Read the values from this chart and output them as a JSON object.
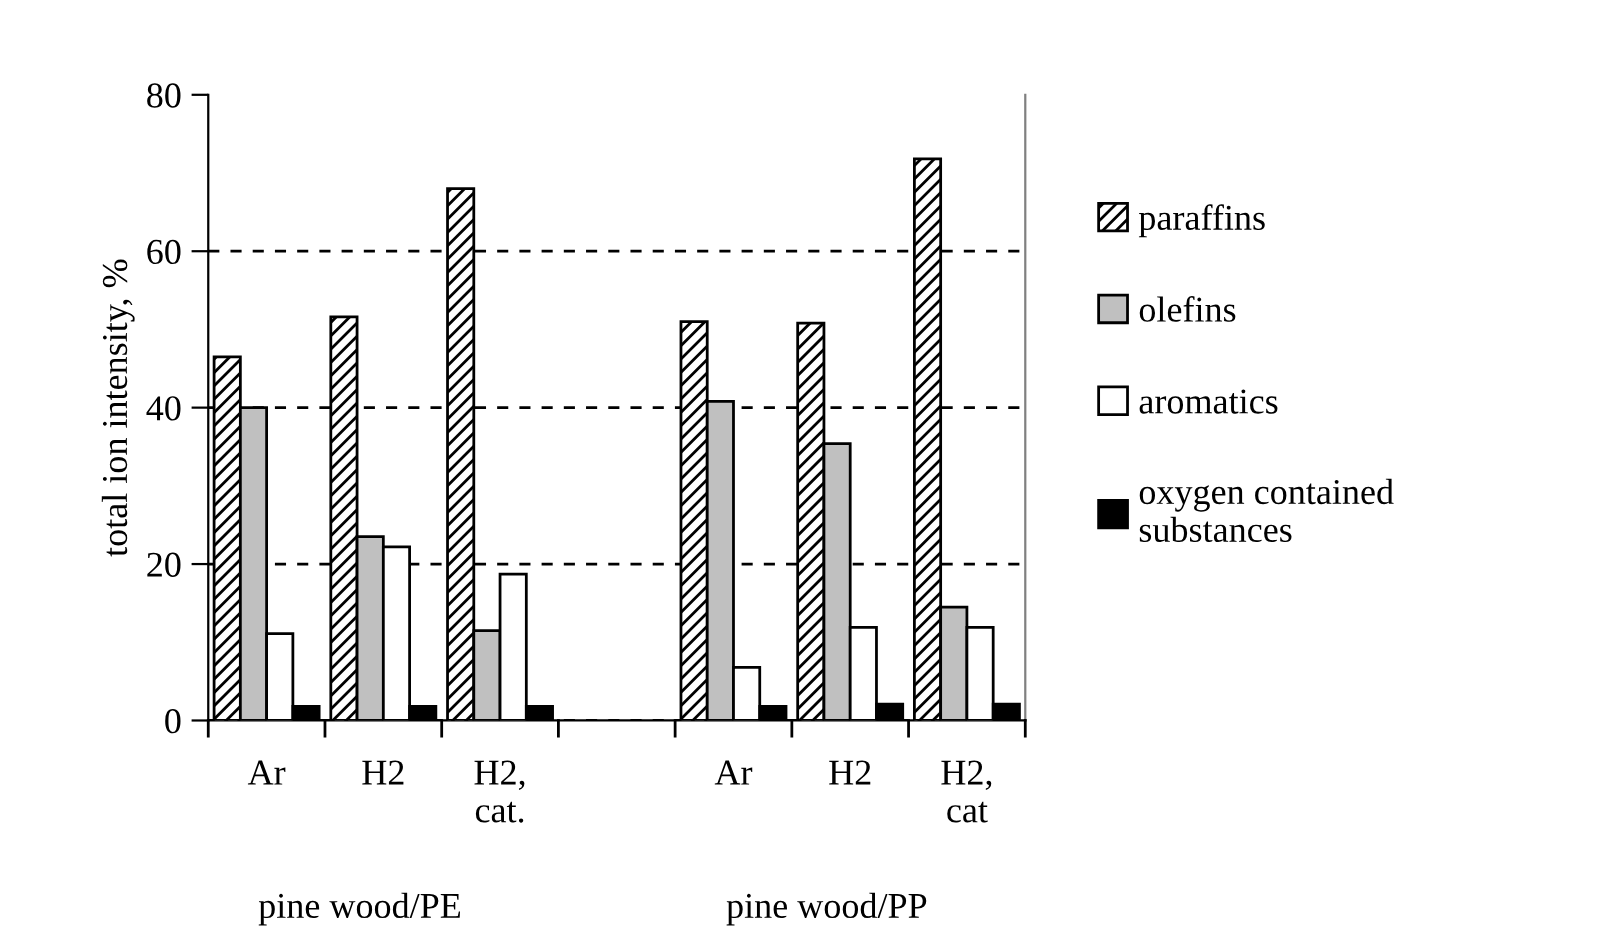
{
  "chart_data": {
    "type": "bar",
    "ylabel": "total ion intensity, %",
    "categories": [
      "Ar",
      "H2",
      "H2,\ncat.",
      null,
      "Ar",
      "H2",
      "H2,\ncat"
    ],
    "series": [
      {
        "name": "paraffins",
        "color": "#000000",
        "values": [
          46.5,
          51.6,
          68,
          null,
          51,
          50.8,
          71.8
        ]
      },
      {
        "name": "olefins",
        "color": "#c0c0c0",
        "values": [
          40,
          23.5,
          11.5,
          null,
          40.8,
          35.4,
          14.5
        ]
      },
      {
        "name": "aromatics",
        "color": "#ffffff",
        "values": [
          11.1,
          22.2,
          18.7,
          null,
          6.8,
          11.9,
          11.9
        ]
      },
      {
        "name": "oxygen contained\nsubstances",
        "color": "#000000",
        "values": [
          1.8,
          1.8,
          1.8,
          null,
          1.8,
          2.1,
          2.1
        ]
      }
    ],
    "annotations": [
      "pine wood/PE",
      "pine wood/PP"
    ],
    "ylim": [
      0,
      80
    ],
    "yticks": [
      0,
      20,
      40,
      60,
      80
    ],
    "grid": "y",
    "legend": "right"
  }
}
